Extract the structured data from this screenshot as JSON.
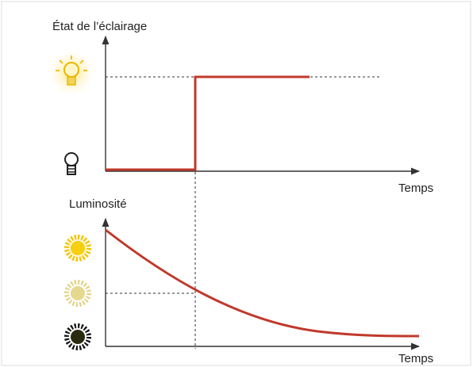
{
  "top_chart": {
    "y_label": "État de l’éclairage",
    "x_label": "Temps"
  },
  "bottom_chart": {
    "y_label": "Luminosité",
    "x_label": "Temps"
  }
}
